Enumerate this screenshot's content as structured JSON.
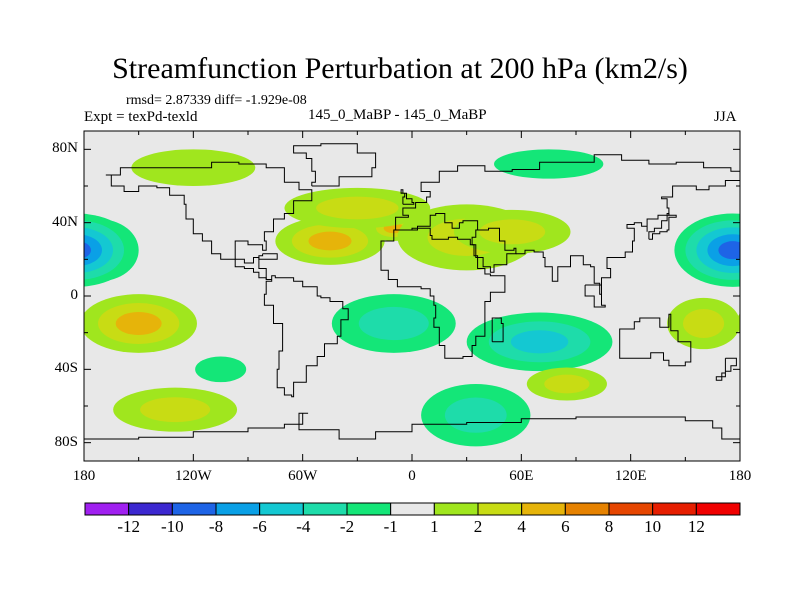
{
  "chart_data": {
    "type": "heatmap",
    "title": "Streamfunction Perturbation at 200 hPa (km2/s)",
    "stats_line": "rmsd= 2.87339 diff= -1.929e-08",
    "left_label": "Expt = texPd-texld",
    "center_label": "145_0_MaBP - 145_0_MaBP",
    "right_label": "JJA",
    "x_ticks": [
      "180",
      "120W",
      "60W",
      "0",
      "60E",
      "120E",
      "180"
    ],
    "x_tick_values": [
      -180,
      -120,
      -60,
      0,
      60,
      120,
      180
    ],
    "y_ticks": [
      "80N",
      "40N",
      "0",
      "40S",
      "80S"
    ],
    "y_tick_values": [
      80,
      40,
      0,
      -40,
      -80
    ],
    "xlim": [
      -180,
      180
    ],
    "ylim": [
      -90,
      90
    ],
    "colorbar": {
      "labels": [
        "-12",
        "-10",
        "-8",
        "-6",
        "-4",
        "-2",
        "-1",
        "1",
        "2",
        "4",
        "6",
        "8",
        "10",
        "12"
      ],
      "colors": [
        "#a020f0",
        "#3c28d0",
        "#1e64e6",
        "#0aa0e6",
        "#14c8d2",
        "#1edcaa",
        "#14e678",
        "#e8e8e8",
        "#a0e61e",
        "#c8dc14",
        "#e6b40a",
        "#e68200",
        "#e64600",
        "#e61e00",
        "#f00000"
      ]
    },
    "fields": [
      {
        "lon": -172,
        "lat": 25,
        "value": -10,
        "rx": 22,
        "ry": 17
      },
      {
        "lon": 176,
        "lat": 25,
        "value": -10,
        "rx": 32,
        "ry": 20
      },
      {
        "lon": -150,
        "lat": -15,
        "value": 5,
        "rx": 32,
        "ry": 16
      },
      {
        "lon": -45,
        "lat": 30,
        "value": 5,
        "rx": 30,
        "ry": 13
      },
      {
        "lon": -10,
        "lat": 37,
        "value": 5,
        "rx": 14,
        "ry": 7
      },
      {
        "lon": -30,
        "lat": 48,
        "value": 3,
        "rx": 40,
        "ry": 11
      },
      {
        "lon": 30,
        "lat": 32,
        "value": 4,
        "rx": 38,
        "ry": 18
      },
      {
        "lon": 55,
        "lat": 35,
        "value": 3,
        "rx": 32,
        "ry": 12
      },
      {
        "lon": -120,
        "lat": 70,
        "value": 2,
        "rx": 34,
        "ry": 10
      },
      {
        "lon": -10,
        "lat": -15,
        "value": -4,
        "rx": 34,
        "ry": 16
      },
      {
        "lon": 70,
        "lat": -25,
        "value": -5,
        "rx": 40,
        "ry": 16
      },
      {
        "lon": 35,
        "lat": -65,
        "value": -3,
        "rx": 30,
        "ry": 17
      },
      {
        "lon": -130,
        "lat": -62,
        "value": 3,
        "rx": 34,
        "ry": 12
      },
      {
        "lon": 85,
        "lat": -48,
        "value": 3,
        "rx": 22,
        "ry": 9
      },
      {
        "lon": 160,
        "lat": -15,
        "value": 3,
        "rx": 20,
        "ry": 14
      },
      {
        "lon": 75,
        "lat": 72,
        "value": -2,
        "rx": 30,
        "ry": 8
      },
      {
        "lon": -105,
        "lat": -40,
        "value": -2,
        "rx": 14,
        "ry": 7
      }
    ]
  }
}
